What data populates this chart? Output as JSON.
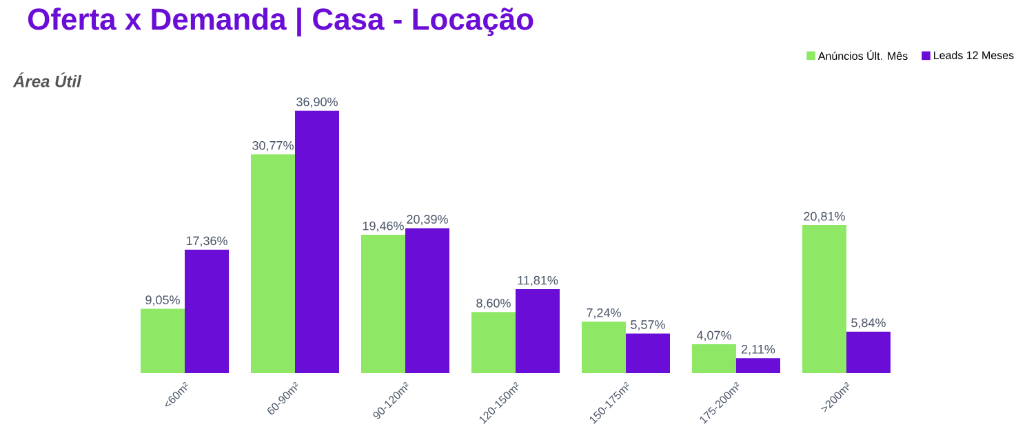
{
  "chart_data": {
    "type": "bar",
    "title": "Oferta x Demanda | Casa - Locação",
    "subtitle": "Área Útil",
    "categories": [
      "<60m²",
      "60-90m²",
      "90-120m²",
      "120-150m²",
      "150-175m²",
      "175-200m²",
      ">200m²"
    ],
    "series": [
      {
        "name": "Anúncios Últ. Mês",
        "color": "#8ee866",
        "values": [
          9.05,
          30.77,
          19.46,
          8.6,
          7.24,
          4.07,
          20.81
        ],
        "value_labels": [
          "9,05%",
          "30,77%",
          "19,46%",
          "8,60%",
          "7,24%",
          "4,07%",
          "20,81%"
        ]
      },
      {
        "name": "Leads 12 Meses",
        "color": "#6a0dd6",
        "values": [
          17.36,
          36.9,
          20.39,
          11.81,
          5.57,
          2.11,
          5.84
        ],
        "value_labels": [
          "17,36%",
          "36,90%",
          "20,39%",
          "11,81%",
          "5,57%",
          "2,11%",
          "5,84%"
        ]
      }
    ],
    "legend": "top right"
  }
}
